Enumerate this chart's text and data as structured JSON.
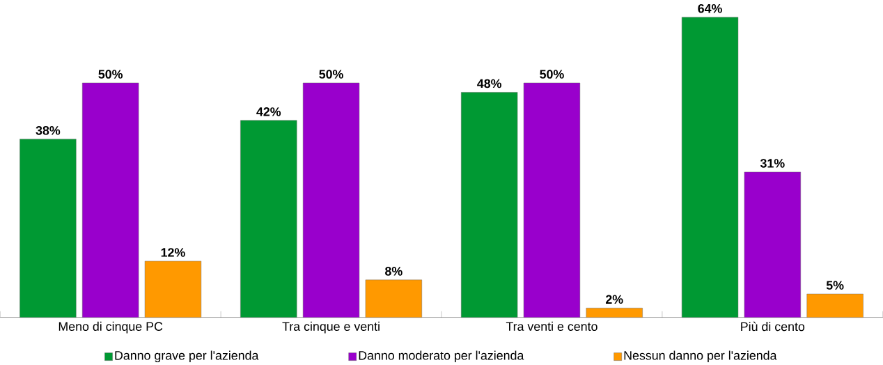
{
  "chart_data": {
    "type": "bar",
    "categories": [
      "Meno di cinque PC",
      "Tra cinque e venti",
      "Tra venti e cento",
      "Più di cento"
    ],
    "series": [
      {
        "name": "Danno grave per l'azienda",
        "color": "#009933",
        "values": [
          38,
          42,
          48,
          64
        ],
        "value_labels": [
          "38%",
          "42%",
          "48%",
          "64%"
        ]
      },
      {
        "name": "Danno moderato per l'azienda",
        "color": "#9900cc",
        "values": [
          50,
          50,
          50,
          31
        ],
        "value_labels": [
          "50%",
          "50%",
          "50%",
          "31%"
        ]
      },
      {
        "name": "Nessun danno per l'azienda",
        "color": "#ff9900",
        "values": [
          12,
          8,
          2,
          5
        ],
        "value_labels": [
          "12%",
          "8%",
          "2%",
          "5%"
        ]
      }
    ],
    "ylim": [
      0,
      64
    ],
    "tick_labels": "x",
    "legend": "bottom"
  }
}
